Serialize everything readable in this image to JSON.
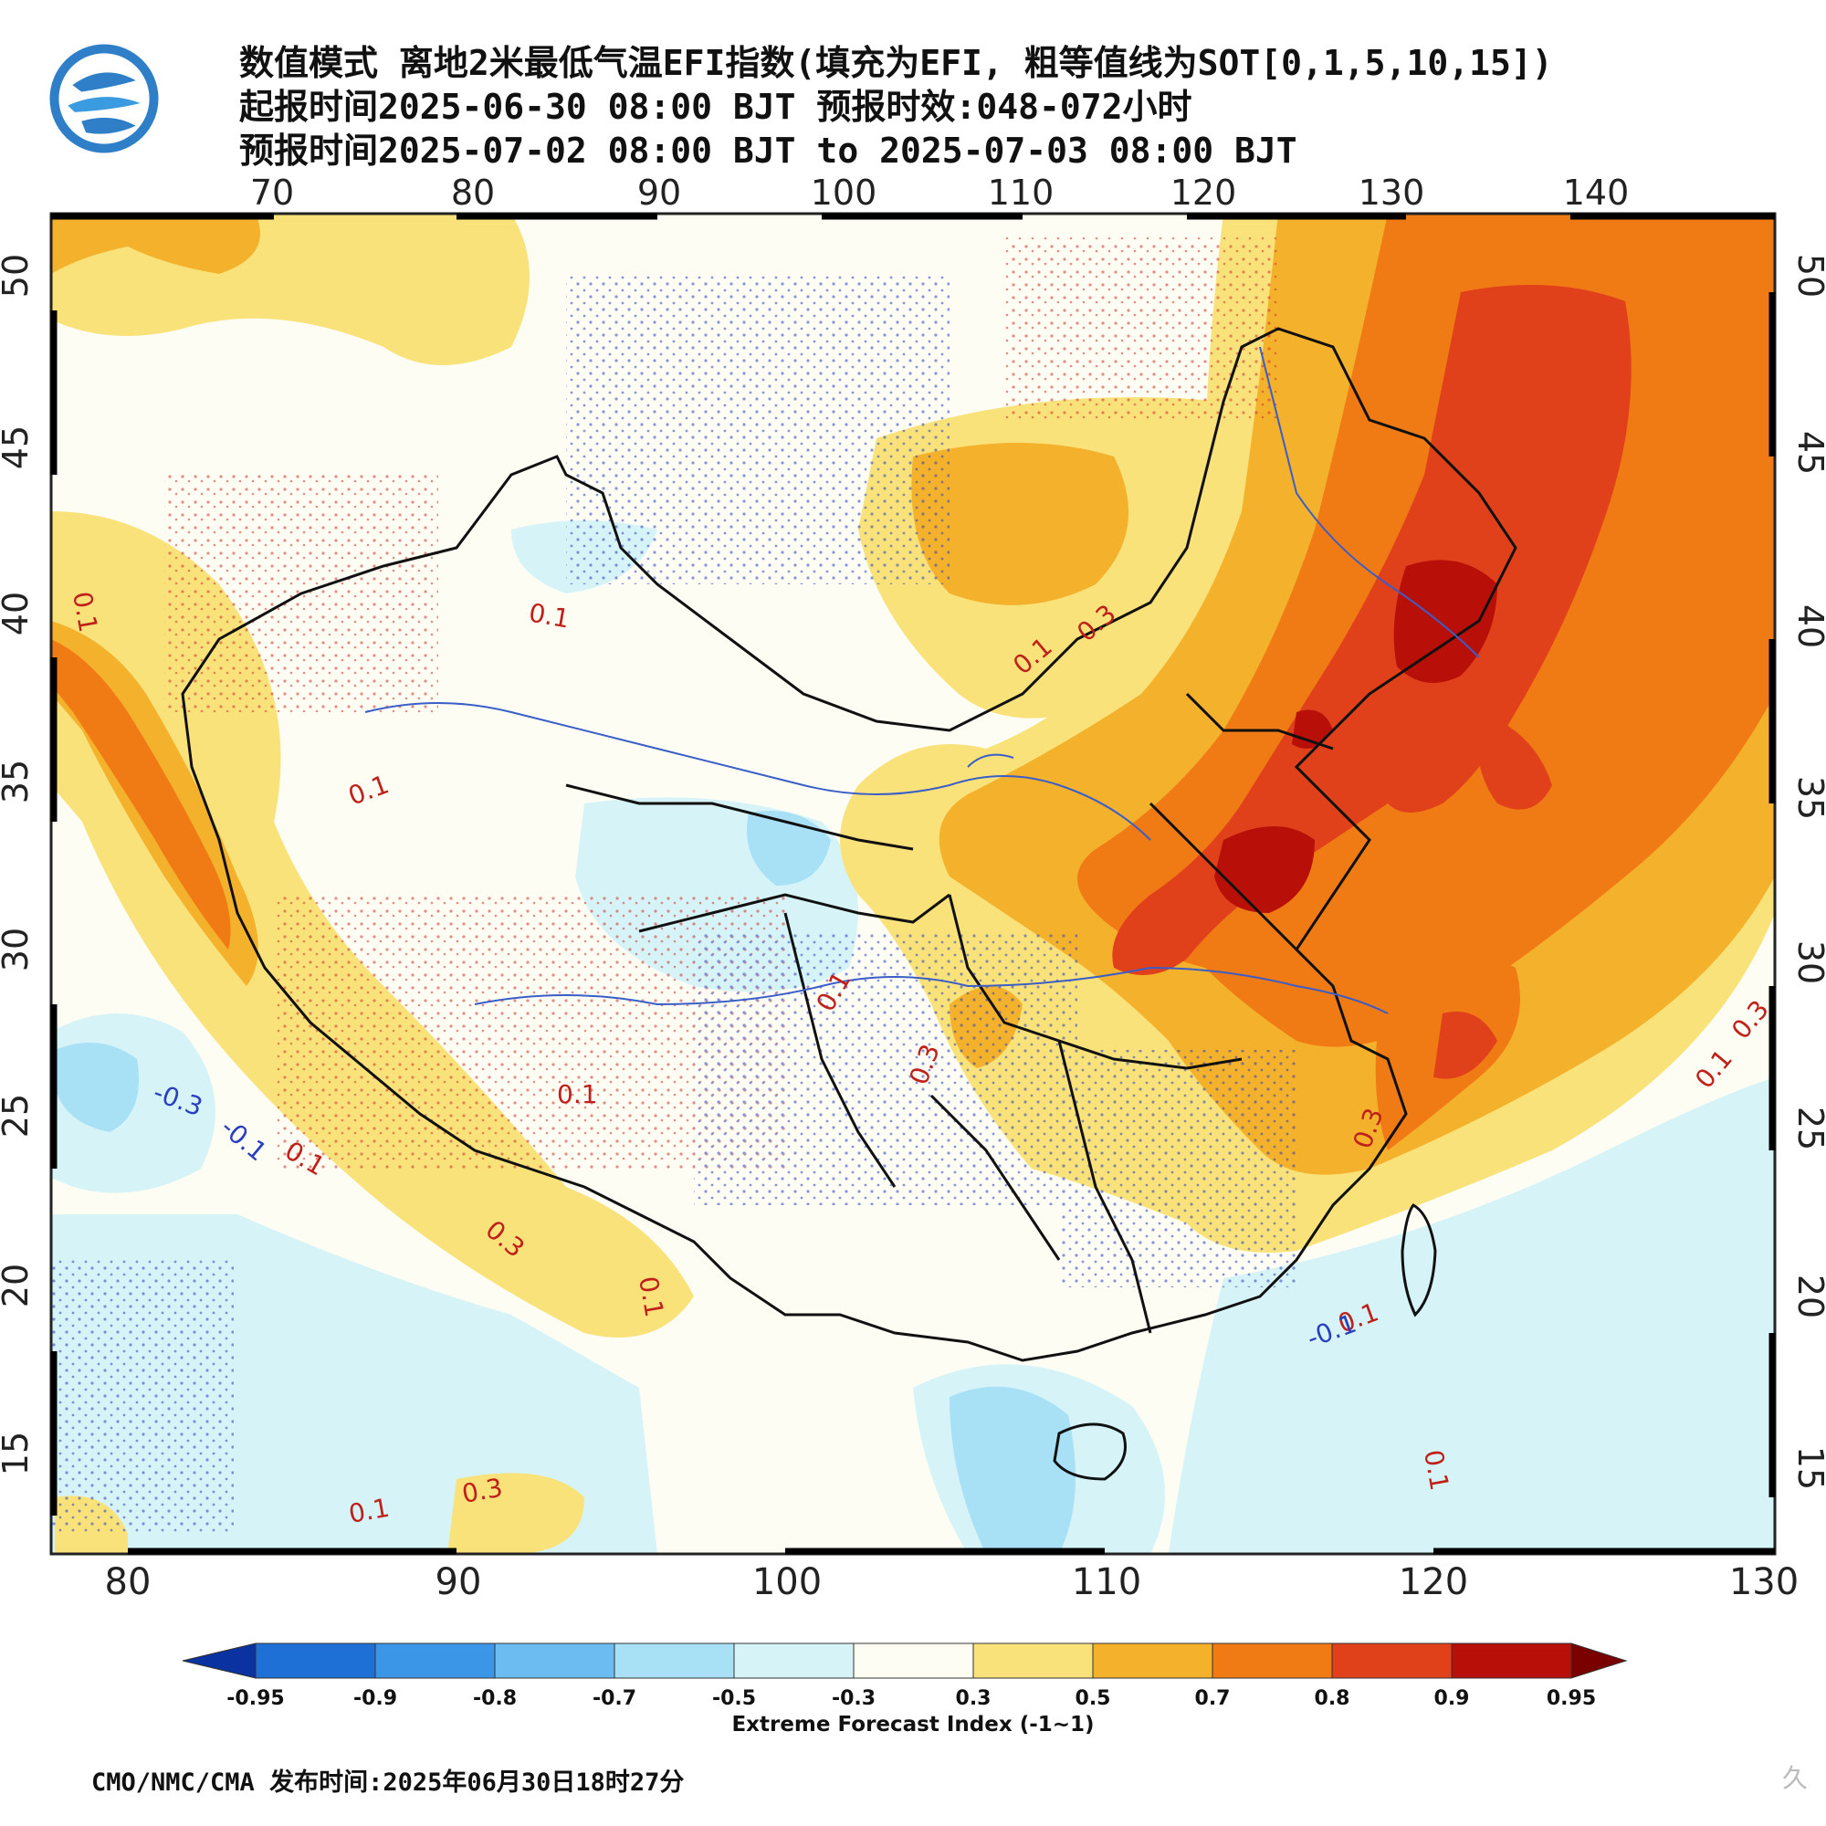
{
  "header": {
    "title_line1": "数值模式 离地2米最低气温EFI指数(填充为EFI, 粗等值线为SOT[0,1,5,10,15])",
    "title_line2": "起报时间2025-06-30 08:00 BJT 预报时效:048-072小时",
    "title_line3": "预报时间2025-07-02 08:00 BJT to 2025-07-03 08:00 BJT"
  },
  "axes": {
    "top_lon": [
      "70",
      "80",
      "90",
      "100",
      "110",
      "120",
      "130",
      "140"
    ],
    "bottom_lon": [
      "80",
      "90",
      "100",
      "110",
      "120",
      "130"
    ],
    "lat": [
      "50",
      "45",
      "40",
      "35",
      "30",
      "25",
      "20",
      "15"
    ]
  },
  "contour_labels": {
    "l01": "0.1",
    "l02": "0.1",
    "l03": "0.1",
    "l04": "0.1",
    "l05": "0.1",
    "l06": "-0.3",
    "l07": "-0.1",
    "l08": "0.1",
    "l09": "0.3",
    "l10": "0.1",
    "l11": "0.1",
    "l12": "0.3",
    "l13": "0.3",
    "l14": "0.1",
    "l15": "0.3",
    "l16": "0.1",
    "l17": "0.3",
    "l18": "-0.1",
    "l19": "0.1",
    "l20": "0.3",
    "l21": "0.1"
  },
  "colorbar": {
    "labels": [
      "-0.95",
      "-0.9",
      "-0.8",
      "-0.7",
      "-0.5",
      "-0.3",
      "0.3",
      "0.5",
      "0.7",
      "0.8",
      "0.9",
      "0.95"
    ],
    "colors": [
      "#0a32a0",
      "#1e6fd6",
      "#3c96e8",
      "#6cbcf2",
      "#a8e0f6",
      "#d6f4f8",
      "#fdfdf4",
      "#fae27a",
      "#f4b12c",
      "#f07a14",
      "#e0401a",
      "#b81008",
      "#7a0000"
    ],
    "title": "Extreme Forecast Index (-1~1)"
  },
  "footer": {
    "text": "CMO/NMC/CMA 发布时间:2025年06月30日18时27分"
  },
  "watermark": {
    "text": "久"
  }
}
